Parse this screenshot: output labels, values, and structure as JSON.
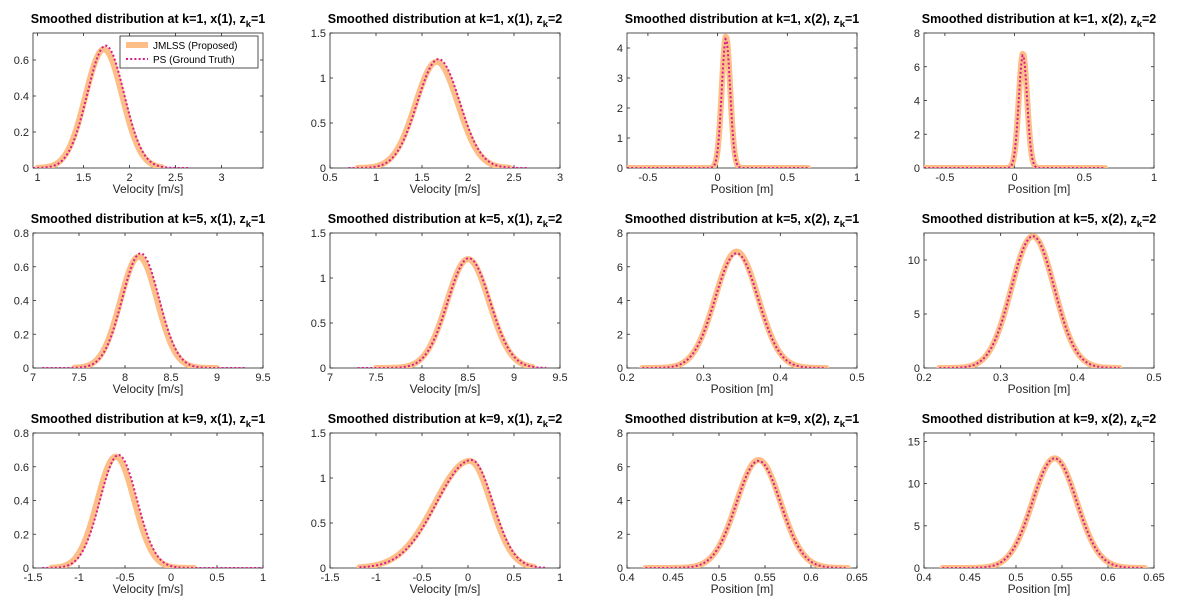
{
  "legend": {
    "proposed": "JMLSS (Proposed)",
    "ground_truth": "PS (Ground Truth)"
  },
  "colors": {
    "proposed": "#fdbf87",
    "ground_truth": "#d91a8c",
    "axis": "#262626"
  },
  "chart_data": [
    {
      "type": "line",
      "title": "Smoothed distribution at k=1, x(1), z",
      "title_sub": "k",
      "title_tail": "=1",
      "xlabel": "Velocity [m/s]",
      "xlim": [
        0.95,
        3.45
      ],
      "ylim": [
        0,
        0.75
      ],
      "xticks": [
        1,
        1.5,
        2,
        2.5,
        3
      ],
      "yticks": [
        0,
        0.2,
        0.4,
        0.6
      ],
      "legend": true,
      "series": [
        {
          "name": "JMLSS (Proposed)",
          "mu": 1.72,
          "sigma": 0.2,
          "peak": 0.66,
          "xrange": [
            1.0,
            2.35
          ]
        },
        {
          "name": "PS (Ground Truth)",
          "mu": 1.74,
          "sigma": 0.2,
          "peak": 0.68,
          "xrange": [
            0.95,
            2.65
          ]
        }
      ]
    },
    {
      "type": "line",
      "title": "Smoothed distribution at k=1, x(1), z",
      "title_sub": "k",
      "title_tail": "=2",
      "xlabel": "Velocity [m/s]",
      "xlim": [
        0.5,
        3
      ],
      "ylim": [
        0,
        1.5
      ],
      "xticks": [
        0.5,
        1,
        1.5,
        2,
        2.5,
        3
      ],
      "yticks": [
        0,
        0.5,
        1,
        1.5
      ],
      "legend": false,
      "series": [
        {
          "name": "JMLSS (Proposed)",
          "mu": 1.66,
          "sigma": 0.23,
          "peak": 1.18,
          "xrange": [
            0.8,
            2.45
          ]
        },
        {
          "name": "PS (Ground Truth)",
          "mu": 1.68,
          "sigma": 0.23,
          "peak": 1.21,
          "xrange": [
            0.7,
            2.65
          ]
        }
      ]
    },
    {
      "type": "line",
      "title": "Smoothed distribution at k=1, x(2), z",
      "title_sub": "k",
      "title_tail": "=1",
      "xlabel": "Position [m]",
      "xlim": [
        -0.65,
        1
      ],
      "ylim": [
        0,
        4.5
      ],
      "xticks": [
        -0.5,
        0,
        0.5,
        1
      ],
      "yticks": [
        0,
        1,
        2,
        3,
        4
      ],
      "legend": false,
      "series": [
        {
          "name": "JMLSS (Proposed)",
          "mu": 0.06,
          "sigma": 0.03,
          "peak": 4.4,
          "xrange": [
            -0.65,
            0.65
          ]
        },
        {
          "name": "PS (Ground Truth)",
          "mu": 0.06,
          "sigma": 0.03,
          "peak": 4.32,
          "xrange": [
            -0.65,
            0.65
          ]
        }
      ]
    },
    {
      "type": "line",
      "title": "Smoothed distribution at k=1, x(2), z",
      "title_sub": "k",
      "title_tail": "=2",
      "xlabel": "Position [m]",
      "xlim": [
        -0.65,
        1
      ],
      "ylim": [
        0,
        8
      ],
      "xticks": [
        -0.5,
        0,
        0.5,
        1
      ],
      "yticks": [
        0,
        2,
        4,
        6,
        8
      ],
      "legend": false,
      "series": [
        {
          "name": "JMLSS (Proposed)",
          "mu": 0.06,
          "sigma": 0.03,
          "peak": 6.8,
          "xrange": [
            -0.65,
            0.65
          ]
        },
        {
          "name": "PS (Ground Truth)",
          "mu": 0.06,
          "sigma": 0.03,
          "peak": 6.7,
          "xrange": [
            -0.65,
            0.65
          ]
        }
      ]
    },
    {
      "type": "line",
      "title": "Smoothed distribution at k=5, x(1), z",
      "title_sub": "k",
      "title_tail": "=1",
      "xlabel": "Velocity [m/s]",
      "xlim": [
        7,
        9.5
      ],
      "ylim": [
        0,
        0.8
      ],
      "xticks": [
        7,
        7.5,
        8,
        8.5,
        9,
        9.5
      ],
      "yticks": [
        0,
        0.2,
        0.4,
        0.6,
        0.8
      ],
      "legend": false,
      "series": [
        {
          "name": "JMLSS (Proposed)",
          "mu": 8.15,
          "sigma": 0.2,
          "peak": 0.66,
          "xrange": [
            7.45,
            9.0
          ]
        },
        {
          "name": "PS (Ground Truth)",
          "mu": 8.17,
          "sigma": 0.2,
          "peak": 0.68,
          "xrange": [
            7.1,
            9.3
          ]
        }
      ]
    },
    {
      "type": "line",
      "title": "Smoothed distribution at k=5, x(1), z",
      "title_sub": "k",
      "title_tail": "=2",
      "xlabel": "Velocity [m/s]",
      "xlim": [
        7,
        9.5
      ],
      "ylim": [
        0,
        1.5
      ],
      "xticks": [
        7,
        7.5,
        8,
        8.5,
        9,
        9.5
      ],
      "yticks": [
        0,
        0.5,
        1,
        1.5
      ],
      "legend": false,
      "series": [
        {
          "name": "JMLSS (Proposed)",
          "mu": 8.5,
          "sigma": 0.23,
          "peak": 1.21,
          "xrange": [
            7.5,
            9.2
          ]
        },
        {
          "name": "PS (Ground Truth)",
          "mu": 8.51,
          "sigma": 0.23,
          "peak": 1.22,
          "xrange": [
            7.3,
            9.35
          ]
        }
      ]
    },
    {
      "type": "line",
      "title": "Smoothed distribution at k=5, x(2), z",
      "title_sub": "k",
      "title_tail": "=1",
      "xlabel": "Position [m]",
      "xlim": [
        0.2,
        0.5
      ],
      "ylim": [
        0,
        8
      ],
      "xticks": [
        0.2,
        0.3,
        0.4,
        0.5
      ],
      "yticks": [
        0,
        2,
        4,
        6,
        8
      ],
      "legend": false,
      "series": [
        {
          "name": "JMLSS (Proposed)",
          "mu": 0.343,
          "sigma": 0.028,
          "peak": 6.9,
          "xrange": [
            0.22,
            0.46
          ]
        },
        {
          "name": "PS (Ground Truth)",
          "mu": 0.343,
          "sigma": 0.028,
          "peak": 6.8,
          "xrange": [
            0.22,
            0.46
          ]
        }
      ]
    },
    {
      "type": "line",
      "title": "Smoothed distribution at k=5, x(2), z",
      "title_sub": "k",
      "title_tail": "=2",
      "xlabel": "Position [m]",
      "xlim": [
        0.2,
        0.5
      ],
      "ylim": [
        0,
        12.5
      ],
      "xticks": [
        0.2,
        0.3,
        0.4,
        0.5
      ],
      "yticks": [
        0,
        5,
        10
      ],
      "legend": false,
      "series": [
        {
          "name": "JMLSS (Proposed)",
          "mu": 0.342,
          "sigma": 0.028,
          "peak": 12.2,
          "xrange": [
            0.22,
            0.455
          ]
        },
        {
          "name": "PS (Ground Truth)",
          "mu": 0.342,
          "sigma": 0.028,
          "peak": 12.2,
          "xrange": [
            0.22,
            0.455
          ]
        }
      ]
    },
    {
      "type": "line",
      "title": "Smoothed distribution at k=9, x(1), z",
      "title_sub": "k",
      "title_tail": "=1",
      "xlabel": "Velocity [m/s]",
      "xlim": [
        -1.5,
        1
      ],
      "ylim": [
        0,
        0.8
      ],
      "xticks": [
        -1.5,
        -1,
        -0.5,
        0,
        0.5,
        1
      ],
      "yticks": [
        0,
        0.2,
        0.4,
        0.6,
        0.8
      ],
      "legend": false,
      "series": [
        {
          "name": "JMLSS (Proposed)",
          "mu": -0.6,
          "sigma": 0.2,
          "peak": 0.66,
          "xrange": [
            -1.3,
            0.25
          ]
        },
        {
          "name": "PS (Ground Truth)",
          "mu": -0.57,
          "sigma": 0.2,
          "peak": 0.67,
          "xrange": [
            -1.4,
            1.0
          ]
        }
      ]
    },
    {
      "type": "line",
      "title": "Smoothed distribution at k=9, x(1), z",
      "title_sub": "k",
      "title_tail": "=2",
      "xlabel": "Velocity [m/s]",
      "xlim": [
        -1.5,
        1
      ],
      "ylim": [
        0,
        1.5
      ],
      "xticks": [
        -1.5,
        -1,
        -0.5,
        0,
        0.5,
        1
      ],
      "yticks": [
        0,
        0.5,
        1,
        1.5
      ],
      "legend": false,
      "series": [
        {
          "name": "JMLSS (Proposed)",
          "mu": 0.02,
          "sigma": 0.23,
          "sigma_left": 0.38,
          "peak": 1.19,
          "xrange": [
            -1.18,
            0.72
          ]
        },
        {
          "name": "PS (Ground Truth)",
          "mu": 0.04,
          "sigma": 0.23,
          "sigma_left": 0.38,
          "peak": 1.2,
          "xrange": [
            -1.18,
            0.85
          ]
        }
      ]
    },
    {
      "type": "line",
      "title": "Smoothed distribution at k=9, x(2), z",
      "title_sub": "k",
      "title_tail": "=1",
      "xlabel": "Position [m]",
      "xlim": [
        0.4,
        0.65
      ],
      "ylim": [
        0,
        8
      ],
      "xticks": [
        0.4,
        0.45,
        0.5,
        0.55,
        0.6,
        0.65
      ],
      "yticks": [
        0,
        2,
        4,
        6,
        8
      ],
      "legend": false,
      "series": [
        {
          "name": "JMLSS (Proposed)",
          "mu": 0.543,
          "sigma": 0.024,
          "peak": 6.4,
          "xrange": [
            0.42,
            0.64
          ]
        },
        {
          "name": "PS (Ground Truth)",
          "mu": 0.543,
          "sigma": 0.024,
          "peak": 6.35,
          "xrange": [
            0.42,
            0.64
          ]
        }
      ]
    },
    {
      "type": "line",
      "title": "Smoothed distribution at k=9, x(2), z",
      "title_sub": "k",
      "title_tail": "=2",
      "xlabel": "Position [m]",
      "xlim": [
        0.4,
        0.65
      ],
      "ylim": [
        0,
        16
      ],
      "xticks": [
        0.4,
        0.45,
        0.5,
        0.55,
        0.6,
        0.65
      ],
      "yticks": [
        0,
        5,
        10,
        15
      ],
      "legend": false,
      "series": [
        {
          "name": "JMLSS (Proposed)",
          "mu": 0.542,
          "sigma": 0.024,
          "peak": 13.0,
          "xrange": [
            0.42,
            0.64
          ]
        },
        {
          "name": "PS (Ground Truth)",
          "mu": 0.542,
          "sigma": 0.024,
          "peak": 13.0,
          "xrange": [
            0.42,
            0.64
          ]
        }
      ]
    }
  ]
}
